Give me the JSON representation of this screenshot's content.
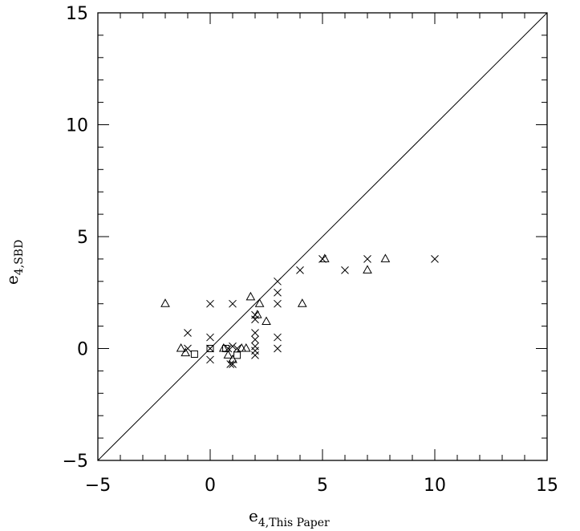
{
  "chart_data": {
    "type": "scatter",
    "xlabel": {
      "main": "e",
      "sub": "4,This Paper"
    },
    "ylabel": {
      "main": "e",
      "sub": "4,SBD"
    },
    "xlim": [
      -5,
      15
    ],
    "ylim": [
      -5,
      15
    ],
    "x_ticks": [
      "−5",
      "0",
      "5",
      "10",
      "15"
    ],
    "y_ticks": [
      "−5",
      "0",
      "5",
      "10",
      "15"
    ],
    "reference_line": {
      "from": [
        -5,
        -5
      ],
      "to": [
        15,
        15
      ]
    },
    "grid": false,
    "series": [
      {
        "marker": "cross",
        "points": [
          [
            0,
            2
          ],
          [
            1,
            2
          ],
          [
            -1,
            0.7
          ],
          [
            -1,
            0
          ],
          [
            0,
            0.5
          ],
          [
            0,
            0
          ],
          [
            0,
            -0.5
          ],
          [
            0.8,
            0
          ],
          [
            1,
            0.1
          ],
          [
            1,
            -0.7
          ],
          [
            0.9,
            -0.7
          ],
          [
            1.2,
            0
          ],
          [
            2,
            1.5
          ],
          [
            2,
            1.3
          ],
          [
            2,
            0.7
          ],
          [
            2,
            0.4
          ],
          [
            2,
            0.1
          ],
          [
            2,
            -0.1
          ],
          [
            2,
            -0.3
          ],
          [
            3,
            3
          ],
          [
            3,
            2.5
          ],
          [
            3,
            2
          ],
          [
            3,
            0.5
          ],
          [
            3,
            0
          ],
          [
            4,
            3.5
          ],
          [
            5,
            4
          ],
          [
            6,
            3.5
          ],
          [
            7,
            4
          ],
          [
            10,
            4
          ]
        ]
      },
      {
        "marker": "triangle",
        "points": [
          [
            -2,
            2
          ],
          [
            -1.3,
            0
          ],
          [
            -1.1,
            -0.2
          ],
          [
            0.6,
            0
          ],
          [
            0.8,
            -0.3
          ],
          [
            1,
            -0.5
          ],
          [
            1.4,
            0
          ],
          [
            1.6,
            0
          ],
          [
            1.8,
            2.3
          ],
          [
            2.1,
            1.5
          ],
          [
            2.2,
            2
          ],
          [
            2.5,
            1.2
          ],
          [
            4.1,
            2
          ],
          [
            5.1,
            4
          ],
          [
            7,
            3.5
          ],
          [
            7.8,
            4
          ]
        ]
      },
      {
        "marker": "square",
        "points": [
          [
            0,
            0
          ],
          [
            -0.7,
            -0.25
          ],
          [
            1.2,
            -0.3
          ],
          [
            0.7,
            0
          ]
        ]
      }
    ]
  }
}
